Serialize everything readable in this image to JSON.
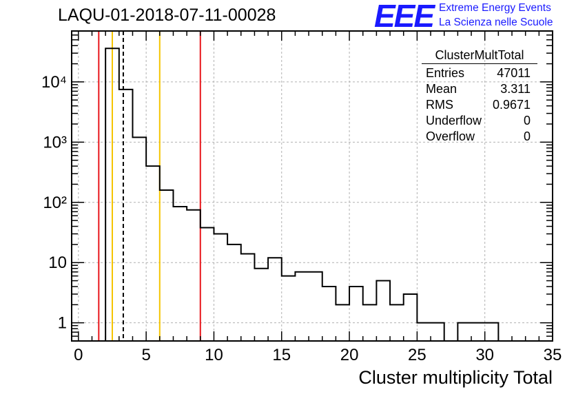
{
  "header": {
    "title": "LAQU-01-2018-07-11-00028",
    "logo": "EEE",
    "logo_line1": "Extreme Energy Events",
    "logo_line2": "La Scienza nelle Scuole"
  },
  "stats_box": {
    "title": "ClusterMultTotal",
    "rows": [
      {
        "label": "Entries",
        "value": "47011"
      },
      {
        "label": "Mean",
        "value": "3.311"
      },
      {
        "label": "RMS",
        "value": "0.9671"
      },
      {
        "label": "Underflow",
        "value": "0"
      },
      {
        "label": "Overflow",
        "value": "0"
      }
    ]
  },
  "chart_data": {
    "type": "bar",
    "title": "LAQU-01-2018-07-11-00028",
    "xlabel": "Cluster multiplicity Total",
    "ylabel": "",
    "xlim": [
      -0.5,
      35
    ],
    "ylim": [
      0.5,
      70000
    ],
    "yscale": "log",
    "grid": true,
    "x_ticks": [
      0,
      5,
      10,
      15,
      20,
      25,
      30,
      35
    ],
    "x_tick_labels": [
      "0",
      "5",
      "10",
      "15",
      "20",
      "25",
      "30",
      "35"
    ],
    "y_ticks": [
      1,
      10,
      100,
      1000,
      10000
    ],
    "y_tick_labels": [
      "1",
      "10",
      "10²",
      "10³",
      "10⁴"
    ],
    "bin_width": 1.0,
    "bin_start": 0.5,
    "bins": [
      {
        "x": 2.5,
        "y": 36000
      },
      {
        "x": 3.5,
        "y": 7500
      },
      {
        "x": 4.5,
        "y": 1200
      },
      {
        "x": 5.5,
        "y": 400
      },
      {
        "x": 6.5,
        "y": 160
      },
      {
        "x": 7.5,
        "y": 85
      },
      {
        "x": 8.5,
        "y": 75
      },
      {
        "x": 9.5,
        "y": 38
      },
      {
        "x": 10.5,
        "y": 30
      },
      {
        "x": 11.5,
        "y": 20
      },
      {
        "x": 12.5,
        "y": 14
      },
      {
        "x": 13.5,
        "y": 8
      },
      {
        "x": 14.5,
        "y": 12
      },
      {
        "x": 15.5,
        "y": 6
      },
      {
        "x": 16.5,
        "y": 7
      },
      {
        "x": 17.5,
        "y": 7
      },
      {
        "x": 18.5,
        "y": 4
      },
      {
        "x": 19.5,
        "y": 2
      },
      {
        "x": 20.5,
        "y": 4
      },
      {
        "x": 21.5,
        "y": 2
      },
      {
        "x": 22.5,
        "y": 5
      },
      {
        "x": 23.5,
        "y": 2
      },
      {
        "x": 24.5,
        "y": 3
      },
      {
        "x": 25.5,
        "y": 1
      },
      {
        "x": 26.5,
        "y": 1
      },
      {
        "x": 27.5,
        "y": 0
      },
      {
        "x": 28.5,
        "y": 1
      },
      {
        "x": 29.5,
        "y": 1
      },
      {
        "x": 30.5,
        "y": 1
      }
    ],
    "markers": [
      {
        "name": "red-line-low",
        "x": 1.5,
        "color": "#e8161b",
        "style": "solid"
      },
      {
        "name": "yellow-line-low",
        "x": 2.5,
        "color": "#f5c400",
        "style": "solid"
      },
      {
        "name": "mean-line",
        "x": 3.311,
        "color": "#000000",
        "style": "dashed"
      },
      {
        "name": "yellow-line-high",
        "x": 6.0,
        "color": "#f5c400",
        "style": "solid"
      },
      {
        "name": "red-line-high",
        "x": 9.0,
        "color": "#e8161b",
        "style": "solid"
      }
    ]
  }
}
